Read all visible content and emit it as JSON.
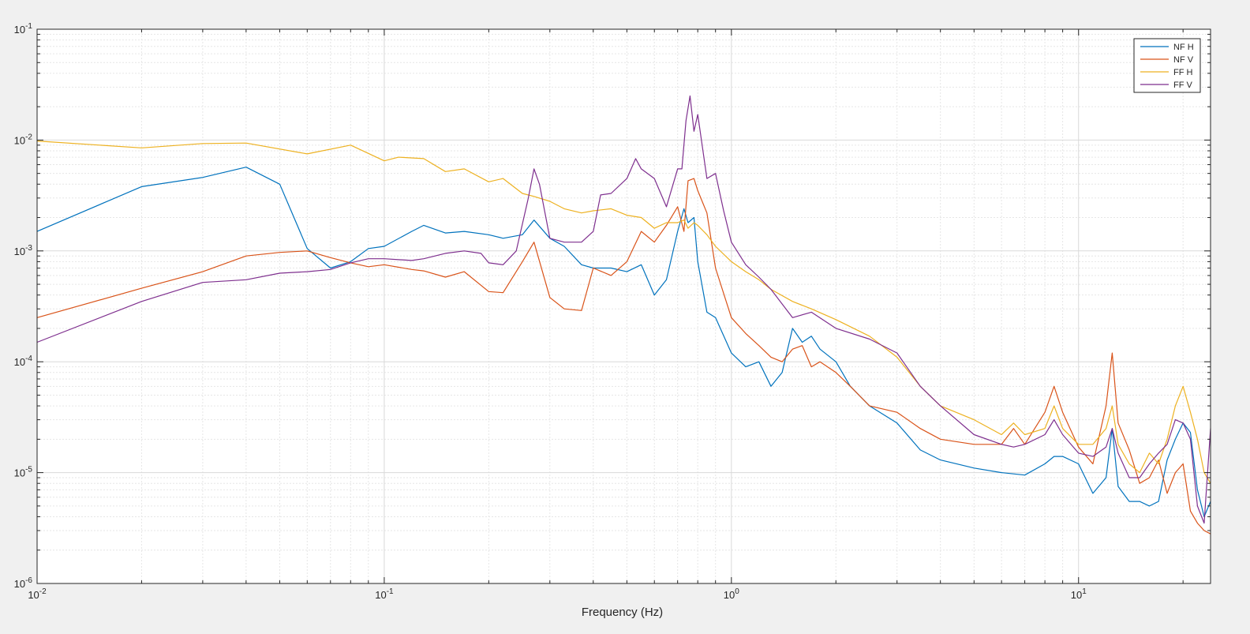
{
  "chart_data": {
    "type": "line",
    "title": "",
    "xlabel": "Frequency (Hz)",
    "ylabel": "",
    "xscale": "log",
    "yscale": "log",
    "xlim": [
      0.01,
      24
    ],
    "ylim": [
      1e-06,
      0.1
    ],
    "grid": true,
    "minor_grid": true,
    "legend_position": "top-right",
    "x_ticks": [
      {
        "value": 0.01,
        "base": "10",
        "exp": "-2"
      },
      {
        "value": 0.1,
        "base": "10",
        "exp": "-1"
      },
      {
        "value": 1,
        "base": "10",
        "exp": "0"
      },
      {
        "value": 10,
        "base": "10",
        "exp": "1"
      }
    ],
    "y_ticks": [
      {
        "value": 1e-06,
        "base": "10",
        "exp": "-6"
      },
      {
        "value": 1e-05,
        "base": "10",
        "exp": "-5"
      },
      {
        "value": 0.0001,
        "base": "10",
        "exp": "-4"
      },
      {
        "value": 0.001,
        "base": "10",
        "exp": "-3"
      },
      {
        "value": 0.01,
        "base": "10",
        "exp": "-2"
      },
      {
        "value": 0.1,
        "base": "10",
        "exp": "-1"
      }
    ],
    "series": [
      {
        "name": "NF H",
        "color": "#0072bd",
        "x": [
          0.01,
          0.02,
          0.03,
          0.04,
          0.05,
          0.06,
          0.07,
          0.08,
          0.09,
          0.1,
          0.12,
          0.13,
          0.15,
          0.17,
          0.2,
          0.22,
          0.25,
          0.27,
          0.3,
          0.33,
          0.37,
          0.4,
          0.45,
          0.5,
          0.55,
          0.6,
          0.65,
          0.7,
          0.73,
          0.75,
          0.78,
          0.8,
          0.85,
          0.9,
          1.0,
          1.1,
          1.2,
          1.3,
          1.4,
          1.5,
          1.6,
          1.7,
          1.8,
          2.0,
          2.2,
          2.5,
          3.0,
          3.5,
          4.0,
          5.0,
          6.0,
          7.0,
          8.0,
          8.5,
          9.0,
          10.0,
          11.0,
          12.0,
          12.5,
          13.0,
          14.0,
          15.0,
          16.0,
          17.0,
          18.0,
          19.0,
          20.0,
          21.0,
          22.0,
          23.0,
          24.0
        ],
        "y": [
          0.0015,
          0.0038,
          0.0046,
          0.0057,
          0.004,
          0.00105,
          0.0007,
          0.0008,
          0.00105,
          0.0011,
          0.0015,
          0.0017,
          0.00145,
          0.0015,
          0.0014,
          0.0013,
          0.0014,
          0.0019,
          0.0013,
          0.0011,
          0.00075,
          0.0007,
          0.0007,
          0.00065,
          0.00075,
          0.0004,
          0.00055,
          0.0015,
          0.0024,
          0.0018,
          0.002,
          0.0008,
          0.00028,
          0.00025,
          0.00012,
          9e-05,
          0.0001,
          6e-05,
          8e-05,
          0.0002,
          0.00015,
          0.00017,
          0.00013,
          0.0001,
          6e-05,
          4e-05,
          2.8e-05,
          1.6e-05,
          1.3e-05,
          1.1e-05,
          1e-05,
          9.5e-06,
          1.2e-05,
          1.4e-05,
          1.4e-05,
          1.2e-05,
          6.5e-06,
          9e-06,
          2.5e-05,
          7.5e-06,
          5.5e-06,
          5.5e-06,
          5e-06,
          5.5e-06,
          1.3e-05,
          2e-05,
          2.8e-05,
          2.3e-05,
          7e-06,
          4e-06,
          5.5e-06
        ]
      },
      {
        "name": "NF V",
        "color": "#d95319",
        "x": [
          0.01,
          0.02,
          0.03,
          0.04,
          0.05,
          0.06,
          0.07,
          0.08,
          0.09,
          0.1,
          0.12,
          0.13,
          0.15,
          0.17,
          0.2,
          0.22,
          0.25,
          0.27,
          0.3,
          0.33,
          0.37,
          0.4,
          0.45,
          0.5,
          0.55,
          0.6,
          0.65,
          0.7,
          0.73,
          0.75,
          0.78,
          0.8,
          0.85,
          0.9,
          1.0,
          1.1,
          1.2,
          1.3,
          1.4,
          1.5,
          1.6,
          1.7,
          1.8,
          2.0,
          2.2,
          2.5,
          3.0,
          3.5,
          4.0,
          5.0,
          6.0,
          6.5,
          7.0,
          8.0,
          8.5,
          9.0,
          10.0,
          11.0,
          12.0,
          12.5,
          13.0,
          14.0,
          15.0,
          16.0,
          17.0,
          18.0,
          19.0,
          20.0,
          21.0,
          22.0,
          23.0,
          24.0
        ],
        "y": [
          0.00025,
          0.00046,
          0.00065,
          0.0009,
          0.00097,
          0.001,
          0.00087,
          0.00078,
          0.00072,
          0.00075,
          0.00068,
          0.00066,
          0.00058,
          0.00065,
          0.00043,
          0.00042,
          0.0008,
          0.0012,
          0.00038,
          0.0003,
          0.00029,
          0.0007,
          0.0006,
          0.0008,
          0.0015,
          0.0012,
          0.0017,
          0.0025,
          0.0015,
          0.0043,
          0.0045,
          0.0035,
          0.0022,
          0.0007,
          0.00025,
          0.00018,
          0.00014,
          0.00011,
          0.0001,
          0.00013,
          0.00014,
          9e-05,
          0.0001,
          8e-05,
          6e-05,
          4e-05,
          3.5e-05,
          2.5e-05,
          2e-05,
          1.8e-05,
          1.8e-05,
          2.5e-05,
          1.8e-05,
          3.5e-05,
          6e-05,
          3.5e-05,
          1.7e-05,
          1.2e-05,
          4e-05,
          0.00012,
          2.8e-05,
          1.6e-05,
          8e-06,
          9e-06,
          1.3e-05,
          6.5e-06,
          1e-05,
          1.2e-05,
          4.5e-06,
          3.5e-06,
          3e-06,
          2.8e-06
        ]
      },
      {
        "name": "FF H",
        "color": "#edb120",
        "x": [
          0.01,
          0.02,
          0.03,
          0.04,
          0.06,
          0.08,
          0.1,
          0.11,
          0.13,
          0.15,
          0.17,
          0.2,
          0.22,
          0.25,
          0.27,
          0.3,
          0.33,
          0.37,
          0.4,
          0.45,
          0.5,
          0.55,
          0.6,
          0.65,
          0.7,
          0.73,
          0.75,
          0.78,
          0.8,
          0.85,
          0.9,
          1.0,
          1.1,
          1.2,
          1.3,
          1.5,
          1.7,
          2.0,
          2.5,
          3.0,
          3.5,
          4.0,
          5.0,
          6.0,
          6.5,
          7.0,
          8.0,
          8.5,
          9.0,
          10.0,
          11.0,
          12.0,
          12.5,
          13.0,
          14.0,
          15.0,
          16.0,
          17.0,
          18.0,
          19.0,
          20.0,
          21.0,
          22.0,
          23.0,
          24.0
        ],
        "y": [
          0.0098,
          0.0085,
          0.0093,
          0.0094,
          0.0075,
          0.009,
          0.0065,
          0.007,
          0.0068,
          0.0052,
          0.0055,
          0.0042,
          0.0045,
          0.0033,
          0.0031,
          0.0028,
          0.0024,
          0.0022,
          0.0023,
          0.0024,
          0.0021,
          0.002,
          0.0016,
          0.0018,
          0.0018,
          0.0019,
          0.0016,
          0.0018,
          0.0017,
          0.0014,
          0.0011,
          0.0008,
          0.00065,
          0.00055,
          0.00045,
          0.00035,
          0.0003,
          0.00024,
          0.00017,
          0.00011,
          6e-05,
          4e-05,
          3e-05,
          2.2e-05,
          2.8e-05,
          2.2e-05,
          2.5e-05,
          4e-05,
          2.5e-05,
          1.8e-05,
          1.8e-05,
          2.5e-05,
          4e-05,
          1.8e-05,
          1.2e-05,
          1e-05,
          1.5e-05,
          1.2e-05,
          2e-05,
          4e-05,
          6e-05,
          3.5e-05,
          2e-05,
          1e-05,
          8e-06
        ]
      },
      {
        "name": "FF V",
        "color": "#7e2f8e",
        "x": [
          0.01,
          0.02,
          0.03,
          0.04,
          0.05,
          0.06,
          0.07,
          0.08,
          0.09,
          0.1,
          0.12,
          0.13,
          0.15,
          0.17,
          0.19,
          0.2,
          0.22,
          0.24,
          0.26,
          0.27,
          0.28,
          0.3,
          0.33,
          0.37,
          0.4,
          0.42,
          0.45,
          0.5,
          0.53,
          0.55,
          0.6,
          0.65,
          0.7,
          0.72,
          0.74,
          0.76,
          0.78,
          0.8,
          0.85,
          0.9,
          0.95,
          1.0,
          1.1,
          1.2,
          1.3,
          1.5,
          1.7,
          2.0,
          2.5,
          3.0,
          3.5,
          4.0,
          5.0,
          6.0,
          6.5,
          7.0,
          8.0,
          8.5,
          9.0,
          10.0,
          11.0,
          12.0,
          12.5,
          13.0,
          14.0,
          15.0,
          16.0,
          17.0,
          18.0,
          19.0,
          20.0,
          21.0,
          22.0,
          23.0,
          24.0
        ],
        "y": [
          0.00015,
          0.00035,
          0.00052,
          0.00055,
          0.00063,
          0.00065,
          0.00068,
          0.00078,
          0.00085,
          0.00085,
          0.00082,
          0.00085,
          0.00095,
          0.001,
          0.00095,
          0.00078,
          0.00075,
          0.001,
          0.003,
          0.0055,
          0.004,
          0.0013,
          0.0012,
          0.0012,
          0.0015,
          0.0032,
          0.0033,
          0.0045,
          0.0068,
          0.0055,
          0.0045,
          0.0025,
          0.0055,
          0.0055,
          0.015,
          0.025,
          0.012,
          0.017,
          0.0045,
          0.005,
          0.0023,
          0.0012,
          0.00075,
          0.00058,
          0.00045,
          0.00025,
          0.00028,
          0.0002,
          0.00016,
          0.00012,
          6e-05,
          4e-05,
          2.2e-05,
          1.8e-05,
          1.7e-05,
          1.8e-05,
          2.2e-05,
          3e-05,
          2.2e-05,
          1.5e-05,
          1.4e-05,
          1.7e-05,
          2.5e-05,
          1.5e-05,
          9e-06,
          9e-06,
          1.2e-05,
          1.5e-05,
          1.8e-05,
          3e-05,
          2.8e-05,
          2e-05,
          5e-06,
          3.5e-06,
          2.5e-05
        ]
      }
    ]
  }
}
